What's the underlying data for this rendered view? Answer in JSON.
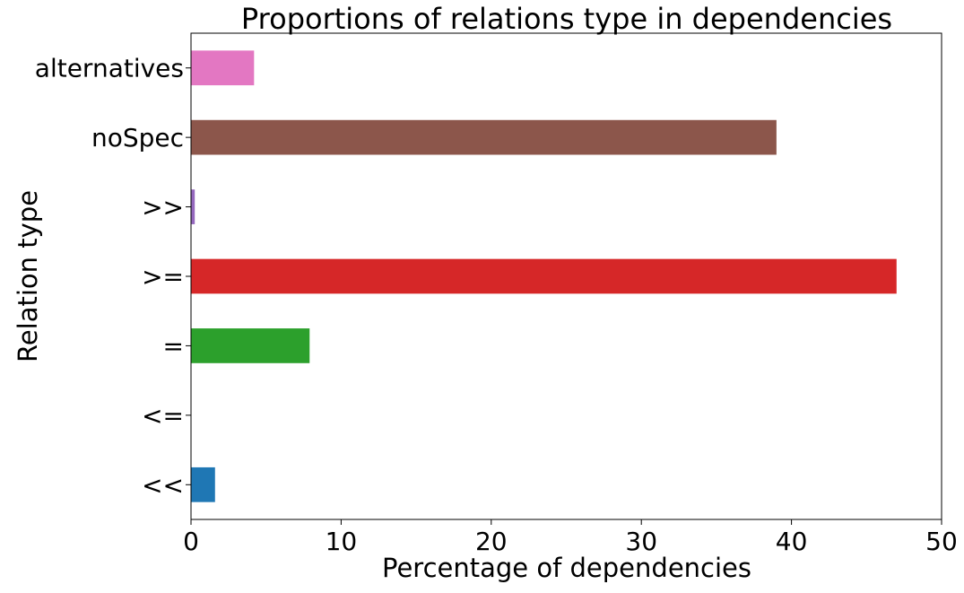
{
  "chart_data": {
    "type": "bar",
    "orientation": "horizontal",
    "title": "Proportions of relations type in dependencies",
    "xlabel": "Percentage of dependencies",
    "ylabel": "Relation type",
    "xlim": [
      0,
      50
    ],
    "xticks": [
      0,
      10,
      20,
      30,
      40,
      50
    ],
    "grid": false,
    "legend": "none",
    "categories": [
      "<<",
      "<=",
      "=",
      ">=",
      ">>",
      "noSpec",
      "alternatives"
    ],
    "values": [
      1.6,
      0.02,
      7.9,
      47.0,
      0.25,
      39.0,
      4.2
    ],
    "colors": [
      "#1f77b4",
      "#ff7f0e",
      "#2ca02c",
      "#d62728",
      "#9467bd",
      "#8c564b",
      "#e377c2"
    ]
  }
}
